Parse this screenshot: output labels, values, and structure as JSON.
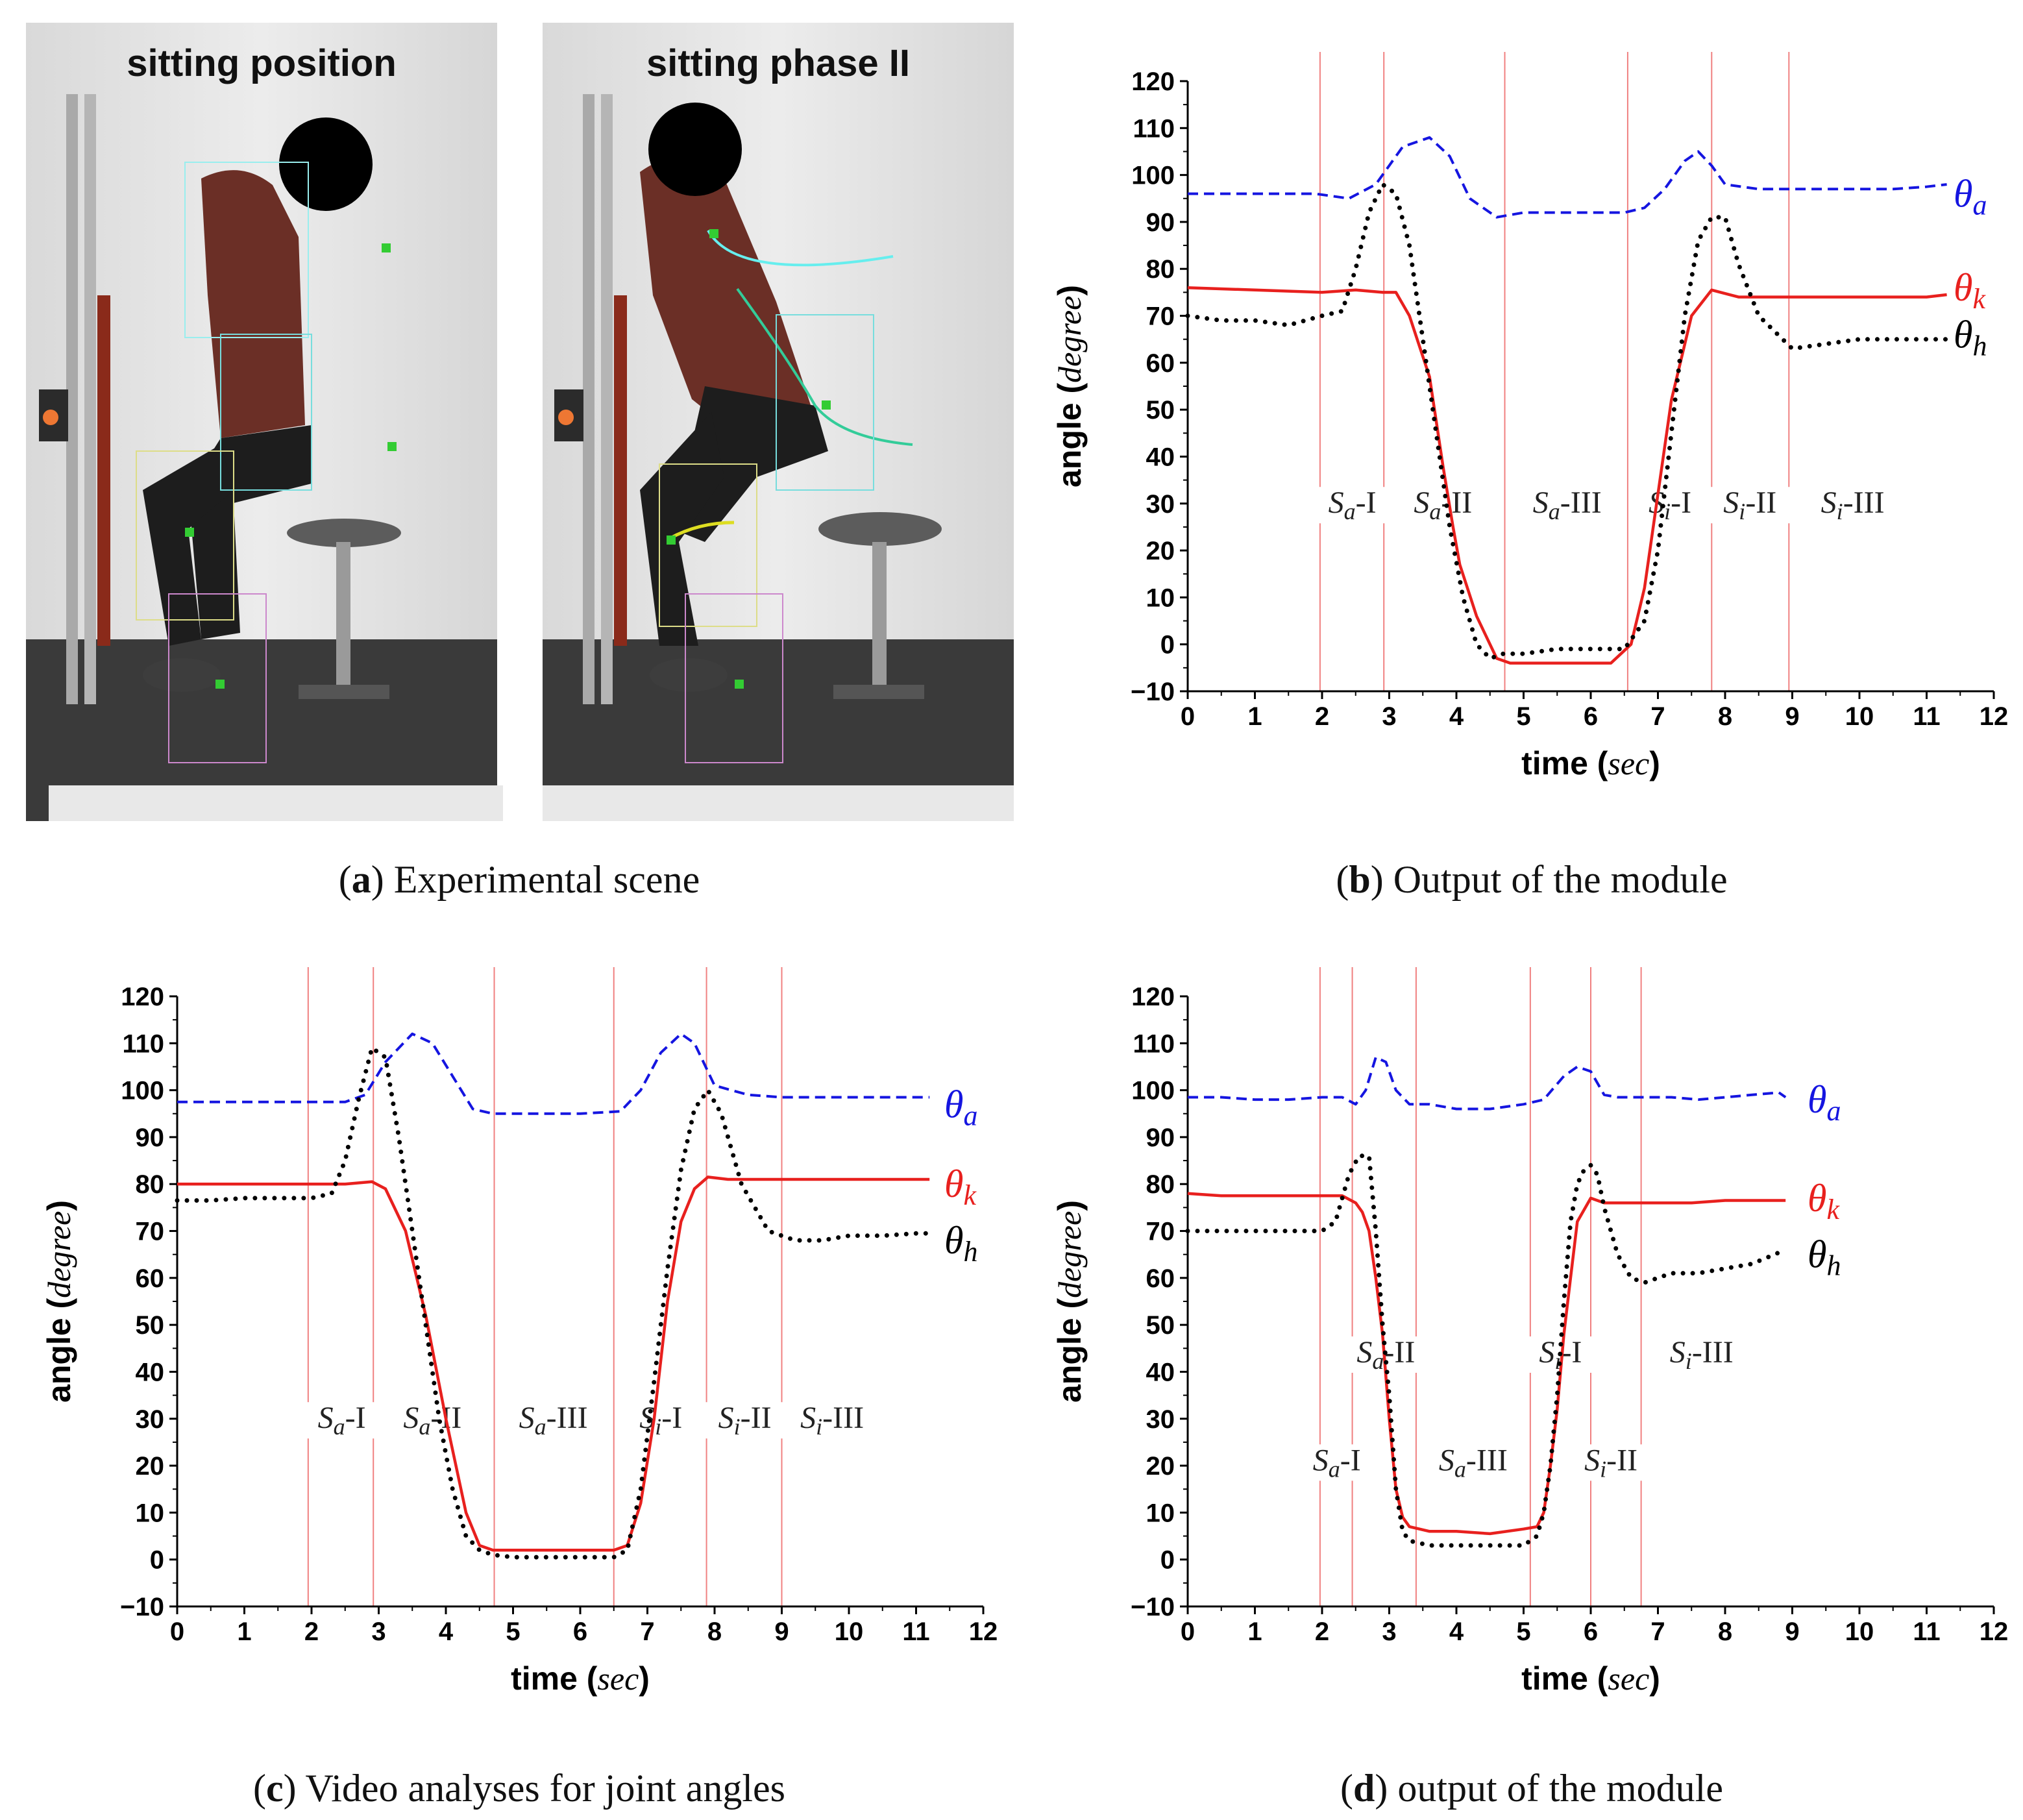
{
  "photos": {
    "left_title": "sitting position",
    "right_title": "sitting phase II"
  },
  "captions": [
    {
      "letter": "a",
      "text": " Experimental scene"
    },
    {
      "letter": "b",
      "text": " Output of the module"
    },
    {
      "letter": "c",
      "text": " Video analyses for joint angles"
    },
    {
      "letter": "d",
      "text": " output of the module"
    }
  ],
  "colors": {
    "theta_a": "#1515e0",
    "theta_k": "#e8201e",
    "theta_h": "#000000",
    "phase_line": "#f08080"
  },
  "chart_data": [
    {
      "panel": "b",
      "type": "line",
      "xlabel_main": "time (",
      "xlabel_unit": "sec",
      "xlabel_close": ")",
      "ylabel_main": "angle (",
      "ylabel_unit": "degree",
      "ylabel_close": ")",
      "xlim": [
        0,
        12
      ],
      "ylim": [
        -10,
        120
      ],
      "xticks": [
        "0",
        "1",
        "2",
        "3",
        "4",
        "5",
        "6",
        "7",
        "8",
        "9",
        "10",
        "11",
        "12"
      ],
      "yticks": [
        "-10",
        "0",
        "10",
        "20",
        "30",
        "40",
        "50",
        "60",
        "70",
        "80",
        "90",
        "100",
        "110",
        "120"
      ],
      "phase_lines_x": [
        1.97,
        2.92,
        4.72,
        6.55,
        7.8,
        8.95
      ],
      "phase_labels": [
        {
          "base": "S",
          "sub": "a",
          "suffix": "-I",
          "x": 2.45,
          "y": 28
        },
        {
          "base": "S",
          "sub": "a",
          "suffix": "-II",
          "x": 3.8,
          "y": 28
        },
        {
          "base": "S",
          "sub": "a",
          "suffix": "-III",
          "x": 5.65,
          "y": 28
        },
        {
          "base": "S",
          "sub": "i",
          "suffix": "-I",
          "x": 7.18,
          "y": 28
        },
        {
          "base": "S",
          "sub": "i",
          "suffix": "-II",
          "x": 8.37,
          "y": 28
        },
        {
          "base": "S",
          "sub": "i",
          "suffix": "-III",
          "x": 9.9,
          "y": 28
        }
      ],
      "series": [
        {
          "name": "θa",
          "label_base": "θ",
          "label_sub": "a",
          "style": "dashed",
          "color_key": "theta_a",
          "label_y": 96,
          "x": [
            0,
            1,
            1.9,
            2.4,
            2.8,
            3.2,
            3.6,
            3.9,
            4.2,
            4.6,
            5.0,
            5.5,
            6.0,
            6.5,
            6.8,
            7.1,
            7.4,
            7.6,
            7.8,
            8.0,
            8.5,
            9.0,
            9.5,
            10,
            10.5,
            11,
            11.3
          ],
          "y": [
            96,
            96,
            96,
            95,
            98,
            106,
            108,
            104,
            95,
            91,
            92,
            92,
            92,
            92,
            93,
            97,
            103,
            105,
            102,
            98,
            97,
            97,
            97,
            97,
            97,
            97.5,
            98
          ]
        },
        {
          "name": "θk",
          "label_base": "θ",
          "label_sub": "k",
          "style": "solid",
          "color_key": "theta_k",
          "label_y": 76,
          "x": [
            0,
            1,
            2,
            2.5,
            2.9,
            3.1,
            3.3,
            3.6,
            3.8,
            3.95,
            4.05,
            4.3,
            4.6,
            4.8,
            5.2,
            5.8,
            6.3,
            6.6,
            6.8,
            7.0,
            7.2,
            7.5,
            7.8,
            8.2,
            8.6,
            9.0,
            10,
            11,
            11.3
          ],
          "y": [
            76,
            75.5,
            75,
            75.5,
            75,
            75,
            70,
            57,
            38,
            25,
            17,
            6,
            -3,
            -4,
            -4,
            -4,
            -4,
            0,
            12,
            32,
            52,
            70,
            75.5,
            74,
            74,
            74,
            74,
            74,
            74.5
          ]
        },
        {
          "name": "θh",
          "label_base": "θ",
          "label_sub": "h",
          "style": "dotted",
          "color_key": "theta_h",
          "label_y": 66,
          "x": [
            0,
            0.5,
            1,
            1.5,
            2,
            2.3,
            2.5,
            2.7,
            2.9,
            3.1,
            3.3,
            3.5,
            3.7,
            3.9,
            4.1,
            4.3,
            4.5,
            4.7,
            5.0,
            5.5,
            6.0,
            6.5,
            6.8,
            7.0,
            7.2,
            7.4,
            7.6,
            7.8,
            8.0,
            8.2,
            8.5,
            9.0,
            9.5,
            10,
            10.5,
            11,
            11.3
          ],
          "y": [
            70,
            69,
            69,
            68,
            70,
            71,
            80,
            92,
            98,
            96,
            85,
            65,
            45,
            25,
            10,
            0,
            -3,
            -2,
            -2,
            -1,
            -1,
            -1,
            5,
            20,
            45,
            70,
            86,
            91,
            91,
            81,
            70,
            63,
            64,
            65,
            65,
            65,
            65
          ]
        }
      ]
    },
    {
      "panel": "c",
      "type": "line",
      "xlabel_main": "time (",
      "xlabel_unit": "sec",
      "xlabel_close": ")",
      "ylabel_main": "angle (",
      "ylabel_unit": "degree",
      "ylabel_close": ")",
      "xlim": [
        0,
        12
      ],
      "ylim": [
        -10,
        120
      ],
      "xticks": [
        "0",
        "1",
        "2",
        "3",
        "4",
        "5",
        "6",
        "7",
        "8",
        "9",
        "10",
        "11",
        "12"
      ],
      "yticks": [
        "-10",
        "0",
        "10",
        "20",
        "30",
        "40",
        "50",
        "60",
        "70",
        "80",
        "90",
        "100",
        "110",
        "120"
      ],
      "phase_lines_x": [
        1.95,
        2.92,
        4.72,
        6.5,
        7.88,
        9.0
      ],
      "phase_labels": [
        {
          "base": "S",
          "sub": "a",
          "suffix": "-I",
          "x": 2.45,
          "y": 28
        },
        {
          "base": "S",
          "sub": "a",
          "suffix": "-II",
          "x": 3.8,
          "y": 28
        },
        {
          "base": "S",
          "sub": "a",
          "suffix": "-III",
          "x": 5.6,
          "y": 28
        },
        {
          "base": "S",
          "sub": "i",
          "suffix": "-I",
          "x": 7.2,
          "y": 28
        },
        {
          "base": "S",
          "sub": "i",
          "suffix": "-II",
          "x": 8.45,
          "y": 28
        },
        {
          "base": "S",
          "sub": "i",
          "suffix": "-III",
          "x": 9.75,
          "y": 28
        }
      ],
      "series": [
        {
          "name": "θa",
          "label_base": "θ",
          "label_sub": "a",
          "style": "dashed",
          "color_key": "theta_a",
          "label_y": 97,
          "x": [
            0,
            1,
            2,
            2.5,
            2.8,
            3.1,
            3.5,
            3.8,
            4.1,
            4.4,
            4.7,
            5.0,
            5.5,
            6.0,
            6.6,
            6.9,
            7.2,
            7.5,
            7.7,
            8.0,
            8.5,
            9.0,
            9.5,
            10,
            10.5,
            11,
            11.2
          ],
          "y": [
            97.5,
            97.5,
            97.5,
            97.5,
            99,
            106,
            112,
            110,
            103,
            96,
            95,
            95,
            95,
            95,
            95.5,
            100,
            108,
            112,
            110,
            101,
            99,
            98.5,
            98.5,
            98.5,
            98.5,
            98.5,
            98.5
          ]
        },
        {
          "name": "θk",
          "label_base": "θ",
          "label_sub": "k",
          "style": "solid",
          "color_key": "theta_k",
          "label_y": 80,
          "x": [
            0,
            1,
            2,
            2.5,
            2.9,
            3.1,
            3.4,
            3.7,
            4.0,
            4.3,
            4.5,
            4.7,
            5.0,
            5.5,
            6.0,
            6.5,
            6.7,
            6.9,
            7.1,
            7.3,
            7.5,
            7.7,
            7.9,
            8.2,
            8.6,
            9.0,
            10,
            11,
            11.2
          ],
          "y": [
            80,
            80,
            80,
            80,
            80.5,
            79,
            70,
            52,
            30,
            10,
            3,
            2,
            2,
            2,
            2,
            2,
            3,
            12,
            30,
            55,
            72,
            79,
            81.5,
            81,
            81,
            81,
            81,
            81,
            81
          ]
        },
        {
          "name": "θh",
          "label_base": "θ",
          "label_sub": "h",
          "style": "dotted",
          "color_key": "theta_h",
          "label_y": 68,
          "x": [
            0,
            0.5,
            1,
            1.5,
            2,
            2.3,
            2.5,
            2.7,
            2.9,
            3.1,
            3.3,
            3.5,
            3.7,
            3.9,
            4.1,
            4.3,
            4.5,
            4.7,
            5.0,
            5.5,
            6.0,
            6.5,
            6.7,
            6.9,
            7.1,
            7.3,
            7.5,
            7.7,
            7.9,
            8.1,
            8.4,
            8.8,
            9.2,
            9.6,
            10,
            10.5,
            11,
            11.2
          ],
          "y": [
            76.5,
            76.5,
            77,
            77,
            77,
            78,
            85,
            98,
            109,
            107,
            90,
            70,
            50,
            30,
            15,
            5,
            2,
            1,
            0.5,
            0.5,
            0.5,
            0.5,
            2,
            15,
            38,
            62,
            83,
            96,
            100,
            95,
            80,
            70,
            68,
            68,
            69,
            69,
            69.5,
            69.5
          ]
        }
      ]
    },
    {
      "panel": "d",
      "type": "line",
      "xlabel_main": "time (",
      "xlabel_unit": "sec",
      "xlabel_close": ")",
      "ylabel_main": "angle (",
      "ylabel_unit": "degree",
      "ylabel_close": ")",
      "xlim": [
        0,
        12
      ],
      "ylim": [
        -10,
        120
      ],
      "xticks": [
        "0",
        "1",
        "2",
        "3",
        "4",
        "5",
        "6",
        "7",
        "8",
        "9",
        "10",
        "11",
        "12"
      ],
      "yticks": [
        "-10",
        "0",
        "10",
        "20",
        "30",
        "40",
        "50",
        "60",
        "70",
        "80",
        "90",
        "100",
        "110",
        "120"
      ],
      "phase_lines_x": [
        1.97,
        2.45,
        3.4,
        5.1,
        6.0,
        6.75
      ],
      "phase_labels": [
        {
          "base": "S",
          "sub": "a",
          "suffix": "-I",
          "x": 2.22,
          "y": 19
        },
        {
          "base": "S",
          "sub": "a",
          "suffix": "-II",
          "x": 2.95,
          "y": 42
        },
        {
          "base": "S",
          "sub": "a",
          "suffix": "-III",
          "x": 4.25,
          "y": 19
        },
        {
          "base": "S",
          "sub": "i",
          "suffix": "-I",
          "x": 5.55,
          "y": 42
        },
        {
          "base": "S",
          "sub": "i",
          "suffix": "-II",
          "x": 6.3,
          "y": 19
        },
        {
          "base": "S",
          "sub": "i",
          "suffix": "-III",
          "x": 7.65,
          "y": 42
        }
      ],
      "series": [
        {
          "name": "θa",
          "label_base": "θ",
          "label_sub": "a",
          "style": "dashed",
          "color_key": "theta_a",
          "label_y": 98,
          "x": [
            0,
            0.5,
            1,
            1.5,
            2,
            2.3,
            2.5,
            2.65,
            2.8,
            2.95,
            3.1,
            3.3,
            3.6,
            4.0,
            4.5,
            5.0,
            5.3,
            5.6,
            5.8,
            6.0,
            6.2,
            6.4,
            6.8,
            7.2,
            7.6,
            8.0,
            8.4,
            8.8,
            8.9
          ],
          "y": [
            98.5,
            98.5,
            98,
            98,
            98.5,
            98.5,
            97,
            100,
            107,
            106,
            100,
            97,
            97,
            96,
            96,
            97,
            98,
            103,
            105,
            104,
            99,
            98.5,
            98.5,
            98.5,
            98,
            98.5,
            99,
            99.5,
            98.5
          ]
        },
        {
          "name": "θk",
          "label_base": "θ",
          "label_sub": "k",
          "style": "solid",
          "color_key": "theta_k",
          "label_y": 77,
          "x": [
            0,
            0.5,
            1,
            1.5,
            2,
            2.3,
            2.5,
            2.6,
            2.7,
            2.8,
            2.9,
            3.0,
            3.1,
            3.2,
            3.3,
            3.6,
            4.0,
            4.5,
            5.0,
            5.2,
            5.3,
            5.4,
            5.5,
            5.6,
            5.7,
            5.8,
            6.0,
            6.2,
            6.6,
            7.0,
            7.5,
            8.0,
            8.5,
            8.9
          ],
          "y": [
            78,
            77.5,
            77.5,
            77.5,
            77.5,
            77.5,
            76,
            74,
            70,
            60,
            48,
            30,
            15,
            9,
            7,
            6,
            6,
            5.5,
            6.5,
            7,
            10,
            20,
            32,
            48,
            60,
            72,
            77,
            76,
            76,
            76,
            76,
            76.5,
            76.5,
            76.5
          ]
        },
        {
          "name": "θh",
          "label_base": "θ",
          "label_sub": "h",
          "style": "dotted",
          "color_key": "theta_h",
          "label_y": 65,
          "x": [
            0,
            0.5,
            1,
            1.5,
            2,
            2.2,
            2.4,
            2.55,
            2.7,
            2.8,
            2.9,
            3.0,
            3.1,
            3.2,
            3.3,
            3.6,
            4.0,
            4.5,
            5.0,
            5.2,
            5.3,
            5.4,
            5.5,
            5.6,
            5.7,
            5.8,
            5.9,
            6.0,
            6.1,
            6.2,
            6.4,
            6.6,
            6.8,
            7.2,
            7.6,
            8.0,
            8.4,
            8.9
          ],
          "y": [
            70,
            70,
            70,
            70,
            70,
            72,
            82,
            86,
            86,
            70,
            50,
            35,
            15,
            6,
            4,
            3,
            3,
            3,
            3,
            5,
            10,
            20,
            35,
            55,
            72,
            80,
            83,
            84,
            82,
            75,
            65,
            60,
            59,
            61,
            61,
            62,
            63,
            66
          ]
        }
      ]
    }
  ]
}
